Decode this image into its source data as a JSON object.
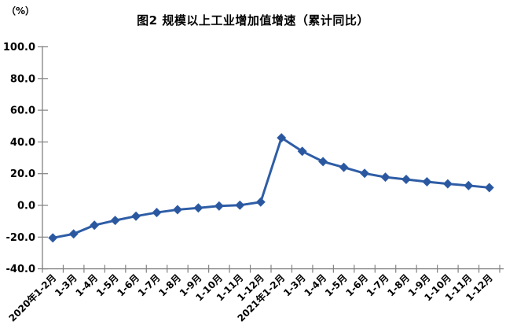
{
  "chart_data": {
    "type": "line",
    "title": "图2  规模以上工业增加值增速（累计同比）",
    "unit_label": "（%）",
    "categories": [
      "2020年1-2月",
      "1-3月",
      "1-4月",
      "1-5月",
      "1-6月",
      "1-7月",
      "1-8月",
      "1-9月",
      "1-10月",
      "1-11月",
      "1-12月",
      "2021年1-2月",
      "1-3月",
      "1-4月",
      "1-5月",
      "1-6月",
      "1-7月",
      "1-8月",
      "1-9月",
      "1-10月",
      "1-11月",
      "1-12月"
    ],
    "values": [
      -20.5,
      -18.0,
      -12.5,
      -9.5,
      -6.8,
      -4.5,
      -2.7,
      -1.6,
      -0.4,
      0.1,
      2.1,
      42.6,
      34.1,
      27.6,
      24.0,
      20.2,
      17.8,
      16.4,
      14.9,
      13.6,
      12.5,
      11.2
    ],
    "ylim": [
      -40,
      100
    ],
    "ytick_step": 20,
    "ytick_labels": [
      "100.0",
      "80.0",
      "60.0",
      "40.0",
      "20.0",
      "0.0",
      "-20.0",
      "-40.0"
    ],
    "xlabel": "",
    "ylabel": "",
    "grid": false,
    "legend": "none",
    "colors": {
      "line": "#2E5DA6",
      "marker_fill": "#2B579E",
      "axis": "#828282",
      "text": "#000000"
    }
  }
}
